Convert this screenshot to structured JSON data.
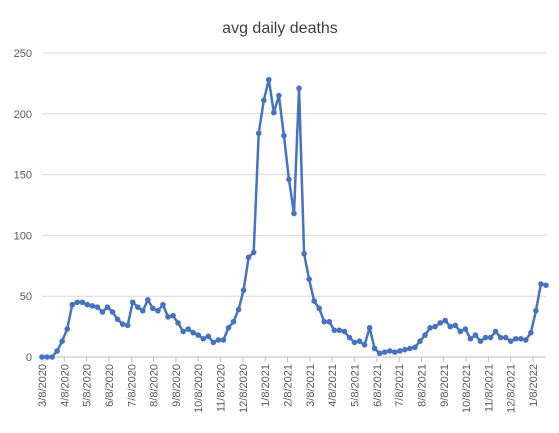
{
  "chart_data": {
    "type": "line",
    "title": "avg daily deaths",
    "xlabel": "",
    "ylabel": "",
    "ylim": [
      0,
      250
    ],
    "yticks": [
      0,
      50,
      100,
      150,
      200,
      250
    ],
    "grid": "horizontal",
    "legend": "none",
    "x_start": "3/8/2020",
    "x_step_days": 7,
    "xtick_labels": [
      "3/8/2020",
      "4/8/2020",
      "5/8/2020",
      "6/8/2020",
      "7/8/2020",
      "8/8/2020",
      "9/8/2020",
      "10/8/2020",
      "11/8/2020",
      "12/8/2020",
      "1/8/2021",
      "2/8/2021",
      "3/8/2021",
      "4/8/2021",
      "5/8/2021",
      "6/8/2021",
      "7/8/2021",
      "8/8/2021",
      "9/8/2021",
      "10/8/2021",
      "11/8/2021",
      "12/8/2021",
      "1/8/2022"
    ],
    "series": [
      {
        "values": [
          0,
          0,
          0,
          5,
          13,
          23,
          43,
          45,
          45,
          43,
          42,
          41,
          37,
          41,
          37,
          31,
          27,
          26,
          45,
          41,
          38,
          47,
          40,
          38,
          43,
          33,
          34,
          28,
          21,
          23,
          20,
          18,
          15,
          17,
          12,
          14,
          14,
          24,
          29,
          39,
          55,
          82,
          86,
          184,
          211,
          228,
          201,
          215,
          182,
          146,
          118,
          221,
          85,
          64,
          46,
          40,
          29,
          29,
          22,
          22,
          21,
          16,
          12,
          13,
          10,
          24,
          7,
          3,
          4,
          5,
          4,
          5,
          6,
          7,
          8,
          13,
          18,
          24,
          25,
          28,
          30,
          25,
          26,
          21,
          23,
          15,
          18,
          13,
          16,
          16,
          21,
          16,
          16,
          13,
          15,
          15,
          14,
          20,
          38,
          60,
          59
        ]
      }
    ],
    "colors": {
      "line": "#4472c4",
      "grid": "#d9d9d9",
      "text": "#595959"
    }
  }
}
